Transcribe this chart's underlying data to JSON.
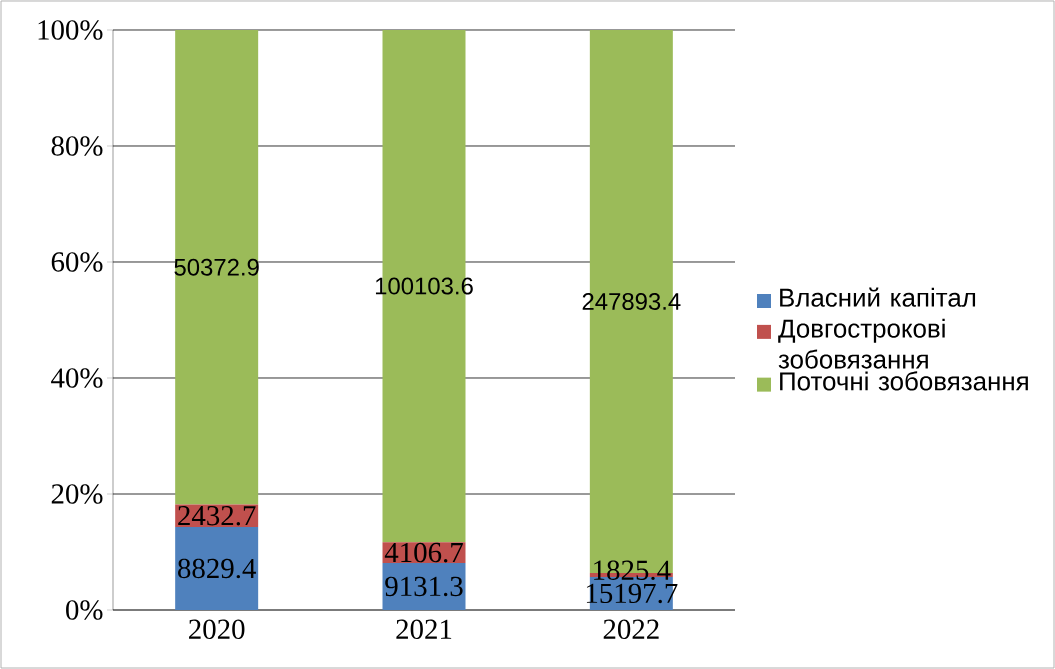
{
  "chart_data": {
    "type": "bar",
    "stacked": true,
    "categories": [
      "2020",
      "2021",
      "2022"
    ],
    "series": [
      {
        "name": "Власний капітал",
        "color": "#4f81bd",
        "values": [
          14.3,
          8.1,
          5.7
        ]
      },
      {
        "name": "Довгострокові зобовязання",
        "color": "#c0504d",
        "values": [
          3.9,
          3.6,
          0.7
        ]
      },
      {
        "name": "Поточні зобовязання",
        "color": "#9bbb59",
        "values": [
          81.8,
          88.3,
          93.6
        ]
      }
    ],
    "annotations": [
      "8829.4",
      "9131.3",
      "15197.7",
      "2432.7",
      "4106.7",
      "1825.4",
      "50372.9",
      "100103.6",
      "247893.4"
    ],
    "ylim": [
      0,
      100
    ],
    "yticks": [
      {
        "value": 0,
        "label": "0%"
      },
      {
        "value": 20,
        "label": "20%"
      },
      {
        "value": 40,
        "label": "40%"
      },
      {
        "value": 60,
        "label": "60%"
      },
      {
        "value": 80,
        "label": "80%"
      },
      {
        "value": 100,
        "label": "100%"
      }
    ],
    "grid": "y",
    "legend": "right"
  }
}
